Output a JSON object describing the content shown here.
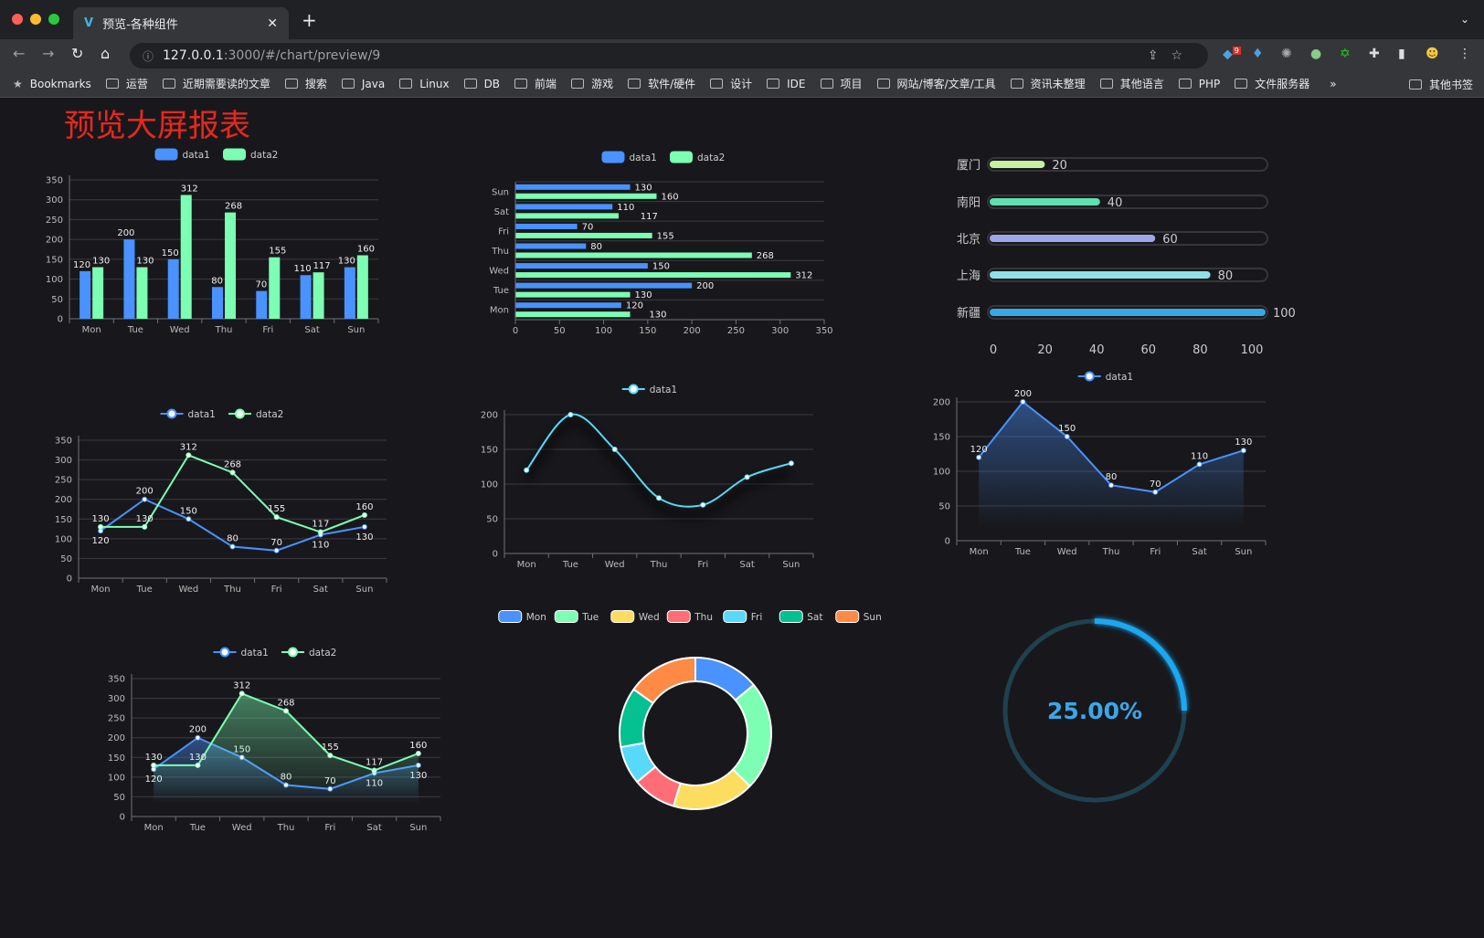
{
  "browser": {
    "tab_title": "预览-各种组件",
    "url_host": "127.0.0.1",
    "url_path": ":3000/#/chart/preview/9",
    "extension_badge": "9",
    "bookmarks_label": "Bookmarks",
    "bookmarks": [
      "运营",
      "近期需要读的文章",
      "搜索",
      "Java",
      "Linux",
      "DB",
      "前端",
      "游戏",
      "软件/硬件",
      "设计",
      "IDE",
      "项目",
      "网站/博客/文章/工具",
      "资讯未整理",
      "其他语言",
      "PHP",
      "文件服务器"
    ],
    "overflow": "»",
    "other_bookmarks": "其他书签"
  },
  "page": {
    "title": "预览大屏报表",
    "title_color": "#e8281c"
  },
  "colors": [
    "#4992ff",
    "#7cffb2",
    "#fddd60",
    "#ff6e76",
    "#58d9f9",
    "#05c091",
    "#ff8a45"
  ],
  "chart_data": [
    {
      "type": "bar",
      "orientation": "vertical",
      "categories": [
        "Mon",
        "Tue",
        "Wed",
        "Thu",
        "Fri",
        "Sat",
        "Sun"
      ],
      "series": [
        {
          "name": "data1",
          "values": [
            120,
            200,
            150,
            80,
            70,
            110,
            130
          ]
        },
        {
          "name": "data2",
          "values": [
            130,
            130,
            312,
            268,
            155,
            117,
            160
          ]
        }
      ],
      "ylim": [
        0,
        350
      ],
      "ystep": 50,
      "grid": true,
      "legend": "top"
    },
    {
      "type": "bar",
      "orientation": "horizontal",
      "categories": [
        "Mon",
        "Tue",
        "Wed",
        "Thu",
        "Fri",
        "Sat",
        "Sun"
      ],
      "series": [
        {
          "name": "data1",
          "values": [
            120,
            200,
            150,
            80,
            70,
            110,
            130
          ]
        },
        {
          "name": "data2",
          "values": [
            130,
            130,
            312,
            268,
            155,
            117,
            160
          ]
        }
      ],
      "xlim": [
        0,
        350
      ],
      "xstep": 50,
      "grid": true,
      "legend": "top"
    },
    {
      "type": "bar",
      "orientation": "horizontal",
      "style": "progress",
      "categories": [
        "厦门",
        "南阳",
        "北京",
        "上海",
        "新疆"
      ],
      "values": [
        20,
        40,
        60,
        80,
        100
      ],
      "xlim": [
        0,
        100
      ],
      "xstep": 20,
      "colors": [
        "#c6f0a0",
        "#5ee0b0",
        "#9ea6e8",
        "#8fe0e6",
        "#37a9e2"
      ]
    },
    {
      "type": "line",
      "categories": [
        "Mon",
        "Tue",
        "Wed",
        "Thu",
        "Fri",
        "Sat",
        "Sun"
      ],
      "series": [
        {
          "name": "data1",
          "values": [
            120,
            200,
            150,
            80,
            70,
            110,
            130
          ]
        },
        {
          "name": "data2",
          "values": [
            130,
            130,
            312,
            268,
            155,
            117,
            160
          ]
        }
      ],
      "ylim": [
        0,
        350
      ],
      "ystep": 50,
      "grid": true,
      "legend": "top"
    },
    {
      "type": "line",
      "smooth": true,
      "categories": [
        "Mon",
        "Tue",
        "Wed",
        "Thu",
        "Fri",
        "Sat",
        "Sun"
      ],
      "series": [
        {
          "name": "data1",
          "values": [
            120,
            200,
            150,
            80,
            70,
            110,
            130
          ]
        }
      ],
      "ylim": [
        0,
        200
      ],
      "ystep": 50,
      "grid": true,
      "legend": "top",
      "data_labels": false
    },
    {
      "type": "area",
      "categories": [
        "Mon",
        "Tue",
        "Wed",
        "Thu",
        "Fri",
        "Sat",
        "Sun"
      ],
      "series": [
        {
          "name": "data1",
          "values": [
            120,
            200,
            150,
            80,
            70,
            110,
            130
          ]
        }
      ],
      "ylim": [
        0,
        200
      ],
      "ystep": 50,
      "grid": true,
      "legend": "top"
    },
    {
      "type": "area",
      "categories": [
        "Mon",
        "Tue",
        "Wed",
        "Thu",
        "Fri",
        "Sat",
        "Sun"
      ],
      "series": [
        {
          "name": "data1",
          "values": [
            120,
            200,
            150,
            80,
            70,
            110,
            130
          ]
        },
        {
          "name": "data2",
          "values": [
            130,
            130,
            312,
            268,
            155,
            117,
            160
          ]
        }
      ],
      "ylim": [
        0,
        350
      ],
      "ystep": 50,
      "grid": true,
      "legend": "top"
    },
    {
      "type": "pie",
      "donut": true,
      "categories": [
        "Mon",
        "Tue",
        "Wed",
        "Thu",
        "Fri",
        "Sat",
        "Sun"
      ],
      "values": [
        120,
        200,
        150,
        80,
        70,
        110,
        130
      ],
      "legend": "top"
    },
    {
      "type": "gauge",
      "value": 0.25,
      "label": "25.00%",
      "color": "#1ea7f1",
      "track_color": "#1f4150"
    }
  ]
}
